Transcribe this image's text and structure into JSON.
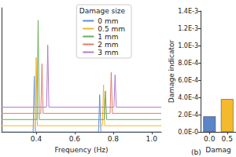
{
  "chart_data": [
    {
      "type": "line",
      "xlabel": "Frequency (Hz)",
      "xlim": [
        0.22,
        1.05
      ],
      "xticks": [
        0.4,
        0.6,
        0.8,
        {
          "value": 1.0,
          "label": "1.0"
        }
      ],
      "ylim": [
        0,
        1
      ],
      "tick_labels": "x",
      "legend": "upper right",
      "legend_title": "Damage size",
      "series": [
        {
          "name": "0 mm",
          "color": "#5b8fd6",
          "x": [
            0.22,
            0.384,
            0.39,
            0.396,
            0.724,
            0.73,
            0.736,
            1.05
          ],
          "values": [
            0,
            0,
            0.45,
            0,
            0,
            0.3,
            0,
            0
          ]
        },
        {
          "name": "0.5 mm",
          "color": "#f2b530",
          "x": [
            0.22,
            0.394,
            0.4,
            0.406,
            0.744,
            0.75,
            0.756,
            1.05
          ],
          "values": [
            0.05,
            0.05,
            0.6,
            0.05,
            0.05,
            0.38,
            0.05,
            0.05
          ]
        },
        {
          "name": "1 mm",
          "color": "#6aaa5e",
          "x": [
            0.22,
            0.404,
            0.41,
            0.416,
            0.754,
            0.76,
            0.766,
            1.05
          ],
          "values": [
            0.1,
            0.1,
            0.9,
            0.1,
            0.1,
            0.33,
            0.1,
            0.1
          ]
        },
        {
          "name": "2 mm",
          "color": "#e07b6a",
          "x": [
            0.22,
            0.424,
            0.43,
            0.436,
            0.784,
            0.79,
            0.796,
            1.05
          ],
          "values": [
            0.15,
            0.15,
            0.55,
            0.15,
            0.15,
            0.48,
            0.15,
            0.15
          ]
        },
        {
          "name": "3 mm",
          "color": "#b27cc7",
          "x": [
            0.22,
            0.454,
            0.46,
            0.466,
            0.804,
            0.81,
            0.816,
            1.05
          ],
          "values": [
            0.2,
            0.2,
            0.7,
            0.2,
            0.2,
            0.46,
            0.2,
            0.2
          ]
        }
      ]
    },
    {
      "type": "bar",
      "label": "(b)",
      "xlabel": "Damag",
      "ylabel": "Damage indicator",
      "categories": [
        "0.0",
        "0.5"
      ],
      "values": [
        0.00018,
        0.00038
      ],
      "colors": [
        "#5a86c8",
        "#f5b92e"
      ],
      "ylim": [
        0,
        0.0014
      ],
      "yticks": [
        {
          "value": 0,
          "label": "0.0E-0"
        },
        {
          "value": 0.0002,
          "label": "2.0E-4"
        },
        {
          "value": 0.0004,
          "label": "4.0E-4"
        },
        {
          "value": 0.0006,
          "label": "6.0E-4"
        },
        {
          "value": 0.0008,
          "label": "8.0E-4"
        },
        {
          "value": 0.001,
          "label": "1.0E-3"
        },
        {
          "value": 0.0012,
          "label": "1.2E-3"
        },
        {
          "value": 0.0014,
          "label": "1.4E-3"
        }
      ]
    }
  ]
}
